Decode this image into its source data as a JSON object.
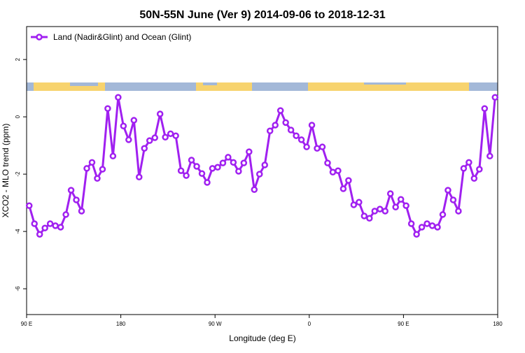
{
  "chart_data": {
    "type": "line",
    "title": "50N-55N June (Ver 9)   2014-09-06 to 2018-12-31",
    "x_label": "Longitude (deg E)",
    "y_label": "XCO2 - MLO trend (ppm)",
    "legend_position": "top-left",
    "xlim": [
      90,
      540
    ],
    "ylim": [
      -6.9,
      3.15
    ],
    "xticks": [
      {
        "value": 90,
        "label": "90 E"
      },
      180,
      {
        "value": 270,
        "label": "90 W"
      },
      {
        "value": 360,
        "label": "0"
      },
      {
        "value": 450,
        "label": "90 E"
      },
      {
        "value": 540,
        "label": "180"
      }
    ],
    "yticks": [
      -6,
      -4,
      -2,
      0,
      2
    ],
    "x": [
      92.5,
      97.5,
      102.5,
      107.5,
      112.5,
      117.5,
      122.5,
      127.5,
      132.5,
      137.5,
      142.5,
      147.5,
      152.5,
      157.5,
      162.5,
      167.5,
      172.5,
      177.5,
      182.5,
      187.5,
      192.5,
      197.5,
      202.5,
      207.5,
      212.5,
      217.5,
      222.5,
      227.5,
      232.5,
      237.5,
      242.5,
      247.5,
      252.5,
      257.5,
      262.5,
      267.5,
      272.5,
      277.5,
      282.5,
      287.5,
      292.5,
      297.5,
      302.5,
      307.5,
      312.5,
      317.5,
      322.5,
      327.5,
      332.5,
      337.5,
      342.5,
      347.5,
      352.5,
      357.5,
      362.5,
      367.5,
      372.5,
      377.5,
      382.5,
      387.5,
      392.5,
      397.5,
      402.5,
      407.5,
      412.5,
      417.5,
      422.5,
      427.5,
      432.5,
      437.5,
      442.5,
      447.5,
      452.5,
      457.5,
      462.5,
      467.5,
      472.5,
      477.5,
      482.5,
      487.5,
      492.5,
      497.5,
      502.5,
      507.5,
      512.5,
      517.5,
      522.5,
      527.5,
      532.5,
      537.5
    ],
    "series": [
      {
        "name": "Land (Nadir&Glint) and Ocean (Glint)",
        "color": "#a020f0",
        "values": [
          -3.1,
          -3.73,
          -4.1,
          -3.88,
          -3.73,
          -3.8,
          -3.85,
          -3.41,
          -2.56,
          -2.9,
          -3.29,
          -1.8,
          -1.59,
          -2.15,
          -1.83,
          0.29,
          -1.37,
          0.68,
          -0.32,
          -0.8,
          -0.12,
          -2.1,
          -1.1,
          -0.83,
          -0.73,
          0.1,
          -0.71,
          -0.59,
          -0.66,
          -1.88,
          -2.05,
          -1.51,
          -1.73,
          -1.98,
          -2.29,
          -1.8,
          -1.76,
          -1.61,
          -1.41,
          -1.59,
          -1.9,
          -1.61,
          -1.22,
          -2.54,
          -2.0,
          -1.68,
          -0.49,
          -0.29,
          0.22,
          -0.2,
          -0.46,
          -0.66,
          -0.8,
          -1.05,
          -0.29,
          -1.1,
          -1.05,
          -1.61,
          -1.93,
          -1.88,
          -2.51,
          -2.22,
          -3.07,
          -2.98,
          -3.46,
          -3.54,
          -3.29,
          -3.22,
          -3.29,
          -2.68,
          -3.15,
          -2.88,
          -3.1,
          -3.73,
          -4.1,
          -3.85,
          -3.73,
          -3.8,
          -3.85,
          -3.41,
          -2.56,
          -2.9,
          -3.29,
          -1.8,
          -1.59,
          -2.15,
          -1.83,
          0.29,
          -1.37,
          0.68
        ]
      }
    ]
  }
}
